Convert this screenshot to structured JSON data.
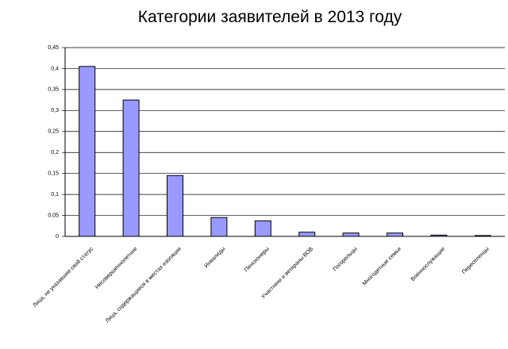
{
  "chart_data": {
    "type": "bar",
    "title": "Категории заявителей в 2013 году",
    "categories": [
      "Лица, не указавшие свой статус",
      "Несовершеннолетние",
      "Лица, содержащиеся в местах изоляции",
      "Инвалиды",
      "Пенсионеры",
      "Участники и ветераны ВОВ",
      "Погорельцы",
      "Многодетные семьи",
      "Военнослужащие",
      "Переселенцы"
    ],
    "values": [
      0.405,
      0.325,
      0.145,
      0.045,
      0.037,
      0.01,
      0.008,
      0.008,
      0.003,
      0.002
    ],
    "color": "#9999ff",
    "ylim": [
      0,
      0.45
    ],
    "yticks": [
      0,
      {
        "value": 0.05,
        "label": "0,05"
      },
      {
        "value": 0.1,
        "label": "0,1"
      },
      {
        "value": 0.15,
        "label": "0,15"
      },
      {
        "value": 0.2,
        "label": "0,2"
      },
      {
        "value": 0.25,
        "label": "0,25"
      },
      {
        "value": 0.3,
        "label": "0,3"
      },
      {
        "value": 0.35,
        "label": "0,35"
      },
      {
        "value": 0.4,
        "label": "0,4"
      },
      {
        "value": 0.45,
        "label": "0,45"
      }
    ],
    "grid": true
  }
}
